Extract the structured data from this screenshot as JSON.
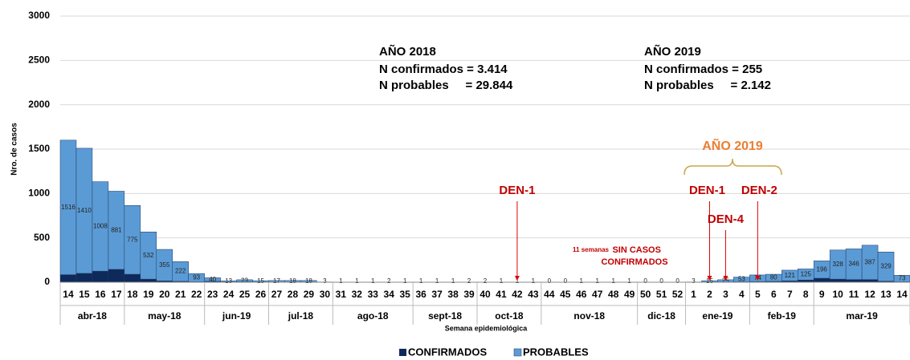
{
  "chart_data": {
    "type": "stacked_bar",
    "y_label": "Nro. de casos",
    "x_label": "Semana epidemiológica",
    "categories": [
      "14",
      "15",
      "16",
      "17",
      "18",
      "19",
      "20",
      "21",
      "22",
      "23",
      "24",
      "25",
      "26",
      "27",
      "28",
      "29",
      "30",
      "31",
      "32",
      "33",
      "34",
      "35",
      "36",
      "37",
      "38",
      "39",
      "40",
      "41",
      "42",
      "43",
      "44",
      "45",
      "46",
      "47",
      "48",
      "49",
      "50",
      "51",
      "52",
      "1",
      "2",
      "3",
      "4",
      "5",
      "6",
      "7",
      "8",
      "9",
      "10",
      "11",
      "12",
      "13",
      "14"
    ],
    "category_groups": [
      "abr-18",
      "abr-18",
      "abr-18",
      "abr-18",
      "may-18",
      "may-18",
      "may-18",
      "may-18",
      "may-18",
      "jun-19",
      "jun-19",
      "jun-19",
      "jun-19",
      "jul-18",
      "jul-18",
      "jul-18",
      "jul-18",
      "ago-18",
      "ago-18",
      "ago-18",
      "ago-18",
      "ago-18",
      "sept-18",
      "sept-18",
      "sept-18",
      "sept-18",
      "oct-18",
      "oct-18",
      "oct-18",
      "oct-18",
      "nov-18",
      "nov-18",
      "nov-18",
      "nov-18",
      "nov-18",
      "nov-18",
      "dic-18",
      "dic-18",
      "dic-18",
      "ene-19",
      "ene-19",
      "ene-19",
      "ene-19",
      "feb-19",
      "feb-19",
      "feb-19",
      "feb-19",
      "mar-19",
      "mar-19",
      "mar-19",
      "mar-19",
      "mar-19",
      "mar-19"
    ],
    "series": [
      {
        "name": "CONFIRMADOS",
        "color": "#0e2a5a",
        "values": [
          85,
          100,
          125,
          145,
          90,
          35,
          15,
          10,
          5,
          10,
          3,
          5,
          2,
          2,
          1,
          1,
          0,
          0,
          0,
          0,
          0,
          0,
          0,
          0,
          0,
          0,
          0,
          0,
          0,
          0,
          0,
          0,
          0,
          0,
          0,
          0,
          0,
          0,
          0,
          0,
          2,
          3,
          5,
          8,
          10,
          15,
          25,
          45,
          35,
          30,
          30,
          12,
          5
        ]
      },
      {
        "name": "PROBABLES",
        "color": "#5b9bd5",
        "values": [
          1516,
          1410,
          1008,
          881,
          775,
          532,
          355,
          222,
          93,
          40,
          13,
          23,
          15,
          17,
          18,
          18,
          3,
          1,
          1,
          1,
          2,
          1,
          1,
          1,
          1,
          2,
          2,
          1,
          1,
          1,
          0,
          0,
          1,
          1,
          1,
          1,
          0,
          0,
          0,
          3,
          15,
          25,
          53,
          74,
          80,
          121,
          125,
          196,
          328,
          346,
          387,
          329,
          73
        ]
      }
    ],
    "ylim": [
      0,
      3000
    ],
    "yticks": [
      0,
      500,
      1000,
      1500,
      2000,
      2500,
      3000
    ],
    "grid": true,
    "legend": "bottom",
    "summary_2018": [
      "AÑO 2018",
      "N confirmados = 3.414",
      "N probables     = 29.844"
    ],
    "summary_2019": [
      "AÑO 2019",
      "N confirmados = 255",
      "N probables     = 2.142"
    ],
    "bracket_label": "AÑO 2019",
    "serotypes": [
      {
        "text": "DEN-1",
        "category": "42"
      },
      {
        "text": "DEN-1",
        "category": "2"
      },
      {
        "text": "DEN-4",
        "category": "3"
      },
      {
        "text": "DEN-2",
        "category": "5"
      }
    ],
    "no_cases_note": [
      "11 semanas",
      "SIN CASOS",
      "CONFIRMADOS"
    ]
  }
}
